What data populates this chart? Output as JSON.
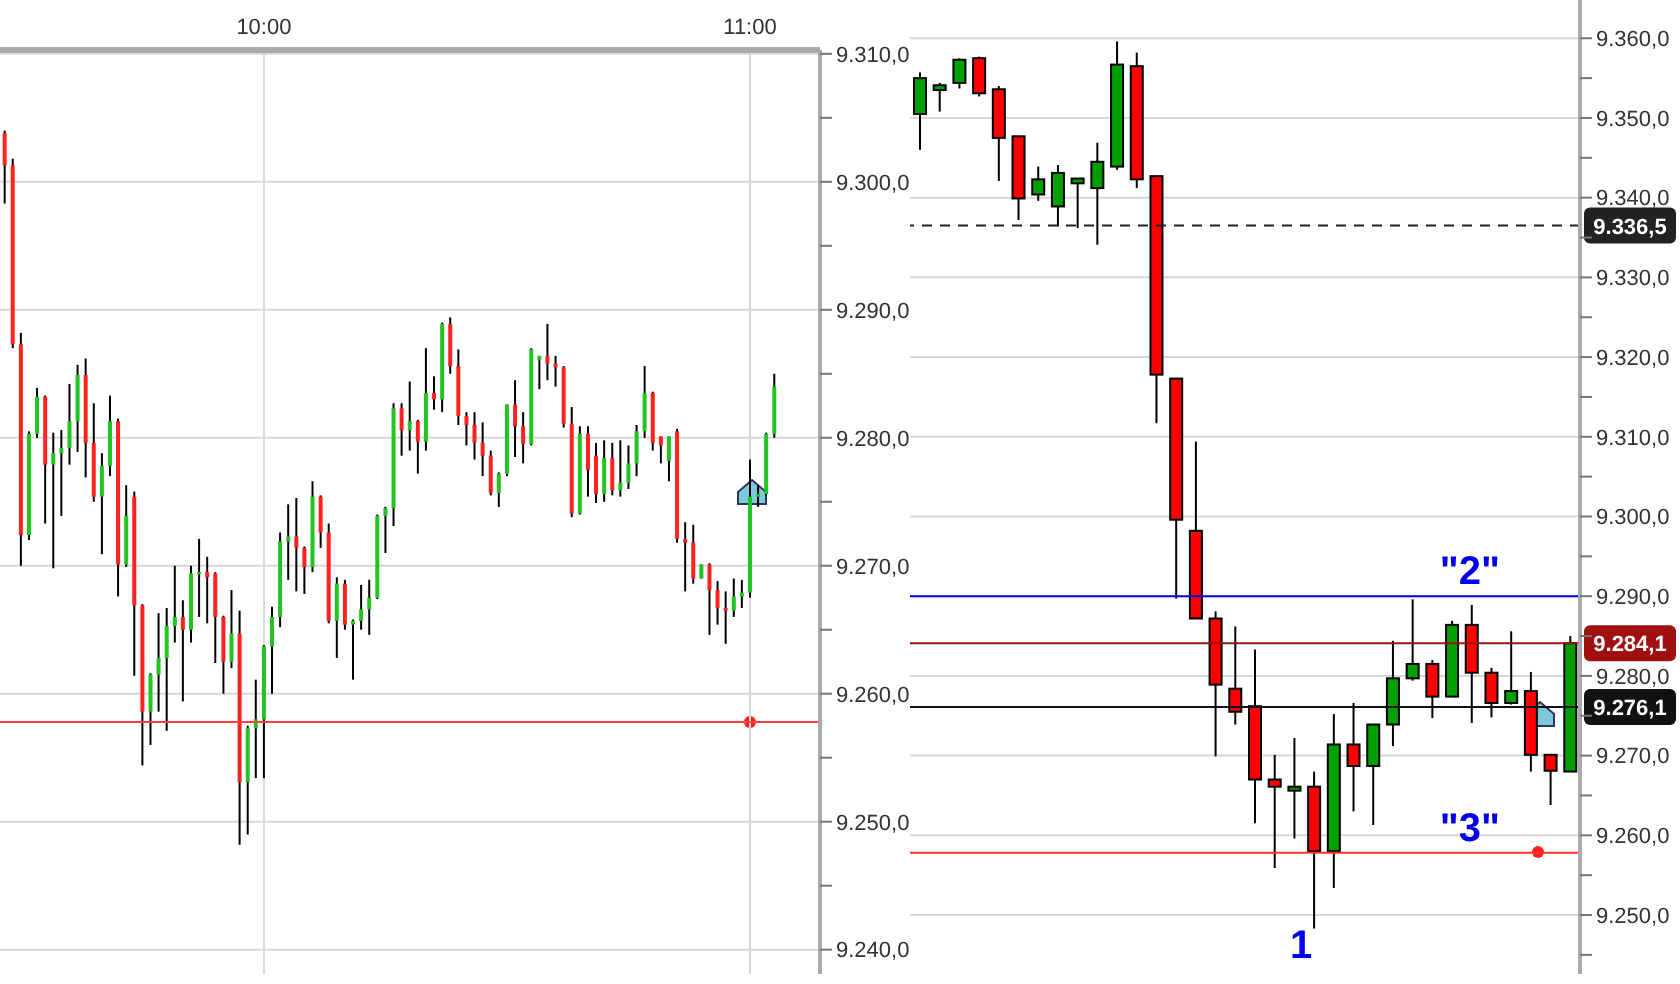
{
  "chart_data": [
    {
      "type": "candlestick",
      "x": [
        9.4667,
        9.4833,
        9.5,
        9.5167,
        9.5333,
        9.55,
        9.5667,
        9.5833,
        9.6,
        9.6167,
        9.6333,
        9.65,
        9.6667,
        9.6833,
        9.7,
        9.7167,
        9.7333,
        9.75,
        9.7667,
        9.7833,
        9.8,
        9.8167,
        9.8333,
        9.85,
        9.8667,
        9.8833,
        9.9,
        9.9167,
        9.9333,
        9.95,
        9.9667,
        9.9833,
        10,
        10.0167,
        10.0333,
        10.05,
        10.0667,
        10.0833,
        10.1,
        10.1167,
        10.1333,
        10.15,
        10.1667,
        10.1833,
        10.2,
        10.2167,
        10.2333,
        10.25,
        10.2667,
        10.2833,
        10.3,
        10.3167,
        10.3333,
        10.35,
        10.3667,
        10.3833,
        10.4,
        10.4167,
        10.4333,
        10.45,
        10.4667,
        10.4833,
        10.5,
        10.5167,
        10.5333,
        10.55,
        10.5667,
        10.5833,
        10.6,
        10.6167,
        10.6333,
        10.65,
        10.6667,
        10.6833,
        10.7,
        10.7167,
        10.7333,
        10.75,
        10.7667,
        10.7833,
        10.8,
        10.8167,
        10.8333,
        10.85,
        10.8667,
        10.8833,
        10.9,
        10.9167,
        10.9333,
        10.95,
        10.9667,
        10.9833,
        11,
        11.0167,
        11.0333,
        11.05
      ],
      "ohlc": [
        [
          9303.8,
          9304,
          9298.3,
          9301.3
        ],
        [
          9301.3,
          9301.8,
          9287,
          9287.3
        ],
        [
          9287.3,
          9288.2,
          9270,
          9272.4
        ],
        [
          9272.4,
          9280.5,
          9272,
          9280.3
        ],
        [
          9280.3,
          9283.9,
          9280,
          9283.2
        ],
        [
          9283.2,
          9283.3,
          9273.3,
          9277.9
        ],
        [
          9277.9,
          9280.4,
          9269.8,
          9278.8
        ],
        [
          9278.8,
          9280.6,
          9273.9,
          9279.2
        ],
        [
          9279.2,
          9284.2,
          9277.9,
          9281.3
        ],
        [
          9281.3,
          9285.7,
          9278.9,
          9284.9
        ],
        [
          9284.9,
          9286.2,
          9276.9,
          9279.6
        ],
        [
          9279.6,
          9282.7,
          9275,
          9275.4
        ],
        [
          9275.4,
          9278.8,
          9270.9,
          9277.8
        ],
        [
          9277.8,
          9283.3,
          9277,
          9281.3
        ],
        [
          9281.3,
          9281.5,
          9267.6,
          9270.1
        ],
        [
          9270.1,
          9276.3,
          9269.9,
          9273.9
        ],
        [
          9275.4,
          9275.8,
          9261.4,
          9266.9
        ],
        [
          9266.9,
          9267,
          9254.4,
          9258.6
        ],
        [
          9258.6,
          9261.6,
          9256,
          9261.5
        ],
        [
          9261.5,
          9266.3,
          9258.6,
          9262.8
        ],
        [
          9262.8,
          9266.7,
          9257.1,
          9265.3
        ],
        [
          9265.3,
          9270,
          9264,
          9266
        ],
        [
          9266,
          9267.3,
          9259.4,
          9265
        ],
        [
          9265,
          9270,
          9264,
          9269.4
        ],
        [
          9269.4,
          9272.1,
          9266,
          9269.5
        ],
        [
          9269.5,
          9270.7,
          9265.5,
          9269.1
        ],
        [
          9269.4,
          9269.5,
          9262.4,
          9266
        ],
        [
          9266,
          9266.1,
          9260,
          9262.5
        ],
        [
          9262.5,
          9268.1,
          9262,
          9264.7
        ],
        [
          9264.7,
          9266.5,
          9248.2,
          9253.1
        ],
        [
          9253.1,
          9257.5,
          9249,
          9257.3
        ],
        [
          9257.3,
          9261.1,
          9253.4,
          9258
        ],
        [
          9258,
          9263.8,
          9253.4,
          9263.7
        ],
        [
          9263.7,
          9266.8,
          9260,
          9266
        ],
        [
          9266,
          9272.6,
          9265.2,
          9271.9
        ],
        [
          9271.9,
          9274.8,
          9268.9,
          9272.3
        ],
        [
          9272.3,
          9275.3,
          9268,
          9271.4
        ],
        [
          9271.4,
          9271.5,
          9267.8,
          9269.9
        ],
        [
          9269.9,
          9276.6,
          9269.5,
          9275.4
        ],
        [
          9275.4,
          9275.5,
          9271.4,
          9272.6
        ],
        [
          9272.6,
          9273.3,
          9265.5,
          9265.7
        ],
        [
          9265.7,
          9269.1,
          9262.8,
          9268.6
        ],
        [
          9268.6,
          9268.9,
          9265,
          9265.4
        ],
        [
          9265.4,
          9265.8,
          9261.1,
          9265.7
        ],
        [
          9265.7,
          9268.5,
          9265,
          9266.6
        ],
        [
          9266.6,
          9268.9,
          9264.6,
          9267.5
        ],
        [
          9267.5,
          9274,
          9267.4,
          9273.9
        ],
        [
          9273.9,
          9274.6,
          9271,
          9274.5
        ],
        [
          9274.5,
          9282.7,
          9273.1,
          9282.3
        ],
        [
          9282.3,
          9282.7,
          9278.6,
          9280.6
        ],
        [
          9280.6,
          9284.4,
          9279,
          9281.3
        ],
        [
          9281.3,
          9281.4,
          9277.2,
          9279.7
        ],
        [
          9279.7,
          9287,
          9279,
          9283.5
        ],
        [
          9283.5,
          9284.8,
          9282.2,
          9283
        ],
        [
          9283,
          9289,
          9282,
          9288.9
        ],
        [
          9288.9,
          9289.4,
          9285,
          9285.6
        ],
        [
          9285.6,
          9286.9,
          9281,
          9281.7
        ],
        [
          9281.7,
          9282,
          9279.4,
          9281
        ],
        [
          9281,
          9282,
          9278.3,
          9279.6
        ],
        [
          9279.6,
          9281.2,
          9277,
          9278.6
        ],
        [
          9278.6,
          9279,
          9275.5,
          9275.7
        ],
        [
          9275.7,
          9277.3,
          9274.6,
          9277.2
        ],
        [
          9277.2,
          9282.6,
          9277,
          9282.6
        ],
        [
          9282.6,
          9284.5,
          9278.5,
          9280.9
        ],
        [
          9280.9,
          9282,
          9278,
          9279.5
        ],
        [
          9279.5,
          9287,
          9279.4,
          9286.9
        ],
        [
          9286.1,
          9286.4,
          9283.8,
          9286.4
        ],
        [
          9286.4,
          9288.9,
          9284.5,
          9285.8
        ],
        [
          9285.8,
          9286.4,
          9284,
          9285.5
        ],
        [
          9285.5,
          9285.6,
          9280.8,
          9281.1
        ],
        [
          9281.1,
          9282.4,
          9273.8,
          9274.1
        ],
        [
          9274.1,
          9280.9,
          9274,
          9280.3
        ],
        [
          9280.3,
          9280.9,
          9275.4,
          9277.5
        ],
        [
          9278.6,
          9279.6,
          9274.9,
          9275.6
        ],
        [
          9275.6,
          9279.8,
          9275,
          9278.4
        ],
        [
          9278.4,
          9279.6,
          9275.5,
          9275.9
        ],
        [
          9275.9,
          9279.8,
          9275.4,
          9276.5
        ],
        [
          9276.5,
          9279.4,
          9276,
          9278
        ],
        [
          9278,
          9281,
          9277,
          9280.5
        ],
        [
          9280.5,
          9285.6,
          9280,
          9283.5
        ],
        [
          9283.5,
          9283.6,
          9279,
          9279.6
        ],
        [
          9280.1,
          9280.1,
          9278,
          9279.4
        ],
        [
          9278.2,
          9280.1,
          9276.6,
          9280.1
        ],
        [
          9280.5,
          9280.7,
          9271.8,
          9272.1
        ],
        [
          9272.1,
          9273.4,
          9268,
          9271.8
        ],
        [
          9271.8,
          9273.2,
          9268.6,
          9269
        ],
        [
          9269,
          9270.1,
          9269,
          9270.1
        ],
        [
          9270.1,
          9270.2,
          9264.6,
          9268.1
        ],
        [
          9268.1,
          9268.8,
          9265.4,
          9266.7
        ],
        [
          9266.7,
          9268,
          9263.9,
          9266.5
        ],
        [
          9266.5,
          9269,
          9266,
          9267.6
        ],
        [
          9267.6,
          9268.9,
          9266.7,
          9267.9
        ],
        [
          9267.9,
          9278.3,
          9267.5,
          9275.4
        ],
        [
          9275.4,
          9276.3,
          9274.6,
          9275.6
        ],
        [
          9275.6,
          9280.4,
          9275.5,
          9280.3
        ],
        [
          9280.3,
          9285,
          9280,
          9284
        ]
      ],
      "colors": [
        "#ff2020",
        "#ff2020",
        "#ff2020",
        "#22c422",
        "#22c422",
        "#ff2020",
        "#22c422",
        "#22c422",
        "#22c422",
        "#22c422",
        "#ff2020",
        "#ff2020",
        "#22c422",
        "#22c422",
        "#ff2020",
        "#22c422",
        "#ff2020",
        "#ff2020",
        "#22c422",
        "#22c422",
        "#22c422",
        "#22c422",
        "#ff2020",
        "#22c422",
        "#22c422",
        "#ff2020",
        "#ff2020",
        "#ff2020",
        "#22c422",
        "#ff2020",
        "#22c422",
        "#22c422",
        "#22c422",
        "#22c422",
        "#22c422",
        "#22c422",
        "#ff2020",
        "#ff2020",
        "#22c422",
        "#ff2020",
        "#ff2020",
        "#22c422",
        "#ff2020",
        "#22c422",
        "#22c422",
        "#22c422",
        "#22c422",
        "#22c422",
        "#22c422",
        "#ff2020",
        "#22c422",
        "#ff2020",
        "#22c422",
        "#ff2020",
        "#22c422",
        "#ff2020",
        "#ff2020",
        "#ff2020",
        "#ff2020",
        "#ff2020",
        "#ff2020",
        "#22c422",
        "#22c422",
        "#ff2020",
        "#ff2020",
        "#22c422",
        "#22c422",
        "#ff2020",
        "#ff2020",
        "#ff2020",
        "#ff2020",
        "#22c422",
        "#ff2020",
        "#ff2020",
        "#22c422",
        "#ff2020",
        "#22c422",
        "#22c422",
        "#22c422",
        "#22c422",
        "#ff2020",
        "#ff2020",
        "#22c422",
        "#ff2020",
        "#ff2020",
        "#ff2020",
        "#22c422",
        "#ff2020",
        "#ff2020",
        "#ff2020",
        "#22c422",
        "#22c422",
        "#22c422",
        "#22c422",
        "#22c422",
        "#22c422"
      ],
      "xlim": [
        9.457,
        11.144
      ],
      "xticks": [
        {
          "value": 10,
          "label": "10:00"
        },
        {
          "value": 11,
          "label": "11:00"
        }
      ],
      "ylim": [
        9238.1,
        9310.3
      ],
      "yticks": [
        {
          "value": 9240,
          "label": "9.240,0"
        },
        {
          "value": 9245,
          "label": null
        },
        {
          "value": 9250,
          "label": "9.250,0"
        },
        {
          "value": 9255,
          "label": null
        },
        {
          "value": 9260,
          "label": "9.260,0"
        },
        {
          "value": 9265,
          "label": null
        },
        {
          "value": 9270,
          "label": "9.270,0"
        },
        {
          "value": 9275,
          "label": null
        },
        {
          "value": 9280,
          "label": "9.280,0"
        },
        {
          "value": 9285,
          "label": null
        },
        {
          "value": 9290,
          "label": "9.290,0"
        },
        {
          "value": 9295,
          "label": null
        },
        {
          "value": 9300,
          "label": "9.300,0"
        },
        {
          "value": 9305,
          "label": null
        },
        {
          "value": 9310,
          "label": "9.310,0"
        }
      ],
      "ref_lines": [
        {
          "axis": "y",
          "value": 9257.8,
          "color": "#ff4040"
        }
      ],
      "grid": true
    },
    {
      "type": "candlestick",
      "categories": [
        null,
        null,
        null,
        null,
        null,
        null,
        null,
        null,
        null,
        null,
        null,
        null,
        null,
        null,
        null,
        null,
        null,
        null,
        null,
        null,
        null,
        null,
        null,
        null,
        null,
        null,
        null,
        null,
        null,
        null,
        null,
        null,
        null,
        null
      ],
      "ohlc": [
        [
          9350.5,
          9355.7,
          9346,
          9355
        ],
        [
          9353.5,
          9354.4,
          9350.8,
          9354.1
        ],
        [
          9354.4,
          9357.5,
          9353.7,
          9357.3
        ],
        [
          9357.5,
          9357.7,
          9352.7,
          9353.1
        ],
        [
          9353.6,
          9354,
          9342.1,
          9347.5
        ],
        [
          9347.7,
          9347.7,
          9337.2,
          9339.9
        ],
        [
          9340.4,
          9343.9,
          9339.6,
          9342.3
        ],
        [
          9338.9,
          9344.1,
          9336.4,
          9343.1
        ],
        [
          9341.8,
          9342.4,
          9336.2,
          9342.4
        ],
        [
          9341.2,
          9346.9,
          9334.1,
          9344.5
        ],
        [
          9343.9,
          9359.6,
          9343.5,
          9356.7
        ],
        [
          9356.5,
          9358.2,
          9341.2,
          9342.3
        ],
        [
          9342.7,
          9342.7,
          9311.7,
          9317.8
        ],
        [
          9317.3,
          9317.3,
          9289.7,
          9299.6
        ],
        [
          9298.2,
          9309.4,
          9287.2,
          9287.2
        ],
        [
          9287.2,
          9288.1,
          9269.9,
          9278.9
        ],
        [
          9278.4,
          9286.2,
          9273.9,
          9275.5
        ],
        [
          9276.2,
          9283.3,
          9261.5,
          9267
        ],
        [
          9267,
          9270.1,
          9255.9,
          9266.1
        ],
        [
          9265.6,
          9272.2,
          9259.6,
          9266.1
        ],
        [
          9266.1,
          9268,
          9248.3,
          9258
        ],
        [
          9258,
          9275.2,
          9253.4,
          9271.4
        ],
        [
          9271.4,
          9276.6,
          9263,
          9268.7
        ],
        [
          9268.7,
          9273.9,
          9261.3,
          9273.9
        ],
        [
          9273.9,
          9284.4,
          9271.2,
          9279.7
        ],
        [
          9279.7,
          9289.6,
          9279.4,
          9281.5
        ],
        [
          9281.5,
          9282,
          9274.7,
          9277.4
        ],
        [
          9277.4,
          9286.9,
          9277.4,
          9286.4
        ],
        [
          9286.4,
          9288.9,
          9274.1,
          9280.4
        ],
        [
          9280.4,
          9281,
          9274.8,
          9276.6
        ],
        [
          9276.6,
          9285.6,
          9276.4,
          9278.1
        ],
        [
          9278.1,
          9280.5,
          9268,
          9270.1
        ],
        [
          9270.1,
          9270.1,
          9263.8,
          9268.1
        ],
        [
          9268,
          9285,
          9268,
          9284.1
        ]
      ],
      "colors": [
        "#00a000",
        "#00a000",
        "#00a000",
        "#ff0000",
        "#ff0000",
        "#ff0000",
        "#00a000",
        "#00a000",
        "#00a000",
        "#00a000",
        "#00a000",
        "#ff0000",
        "#ff0000",
        "#ff0000",
        "#ff0000",
        "#ff0000",
        "#ff0000",
        "#ff0000",
        "#ff0000",
        "#00a000",
        "#ff0000",
        "#00a000",
        "#ff0000",
        "#00a000",
        "#00a000",
        "#00a000",
        "#ff0000",
        "#00a000",
        "#ff0000",
        "#ff0000",
        "#00a000",
        "#ff0000",
        "#ff0000",
        "#00a000"
      ],
      "ylim": [
        9242.6,
        9364.8
      ],
      "yticks": [
        {
          "value": 9245,
          "label": null
        },
        {
          "value": 9250,
          "label": "9.250,0"
        },
        {
          "value": 9255,
          "label": null
        },
        {
          "value": 9260,
          "label": "9.260,0"
        },
        {
          "value": 9265,
          "label": null
        },
        {
          "value": 9270,
          "label": "9.270,0"
        },
        {
          "value": 9275,
          "label": null
        },
        {
          "value": 9280,
          "label": "9.280,0"
        },
        {
          "value": 9285,
          "label": null
        },
        {
          "value": 9290,
          "label": "9.290,0"
        },
        {
          "value": 9295,
          "label": null
        },
        {
          "value": 9300,
          "label": "9.300,0"
        },
        {
          "value": 9305,
          "label": null
        },
        {
          "value": 9310,
          "label": "9.310,0"
        },
        {
          "value": 9315,
          "label": null
        },
        {
          "value": 9320,
          "label": "9.320,0"
        },
        {
          "value": 9325,
          "label": null
        },
        {
          "value": 9330,
          "label": "9.330,0"
        },
        {
          "value": 9335,
          "label": null
        },
        {
          "value": 9340,
          "label": "9.340,0"
        },
        {
          "value": 9345,
          "label": null
        },
        {
          "value": 9350,
          "label": "9.350,0"
        },
        {
          "value": 9355,
          "label": null
        },
        {
          "value": 9360,
          "label": "9.360,0"
        }
      ],
      "tick_labels": "y",
      "ref_lines": [
        {
          "axis": "y",
          "value": 9336.5,
          "label": "9.336,5",
          "color": "#222222",
          "line_style": "dashed"
        },
        {
          "axis": "y",
          "value": 9284.1,
          "label": "9.284,1",
          "color": "#a01010"
        },
        {
          "axis": "y",
          "value": 9276.1,
          "label": "9.276,1",
          "color": "#111111"
        },
        {
          "axis": "y",
          "value": 9290,
          "color": "#0000ff"
        },
        {
          "axis": "y",
          "value": 9257.8,
          "color": "#ff3030"
        }
      ],
      "annotations": [
        {
          "text": "\"2\"",
          "y": 9290
        },
        {
          "text": "\"3\"",
          "y": 9257.8
        },
        "1"
      ],
      "grid": "y"
    }
  ]
}
